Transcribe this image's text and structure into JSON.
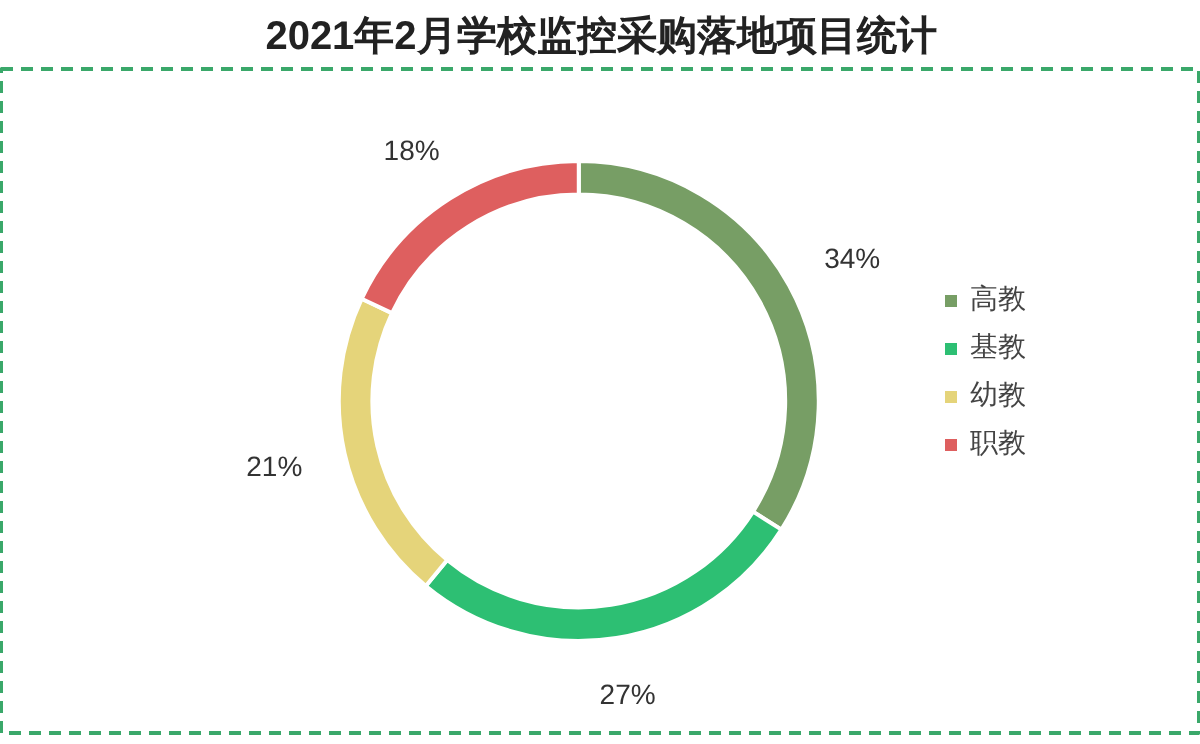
{
  "chart_data": {
    "type": "donut",
    "title": "2021年2月学校监控采购落地项目统计",
    "categories": [
      "高教",
      "基教",
      "幼教",
      "职教"
    ],
    "values": [
      34,
      27,
      21,
      18
    ],
    "value_labels": [
      "34%",
      "27%",
      "21%",
      "18%"
    ],
    "colors": [
      "#779e65",
      "#2dbf73",
      "#e5d47a",
      "#de5f5f"
    ],
    "legend": "right"
  }
}
